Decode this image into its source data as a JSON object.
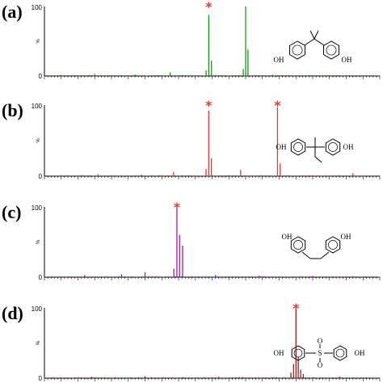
{
  "chart_data": [
    {
      "type": "bar",
      "panel_label": "(a)",
      "color": "#1a9a1a",
      "y_ticks": [
        "0",
        "%",
        "100"
      ],
      "ylim": [
        0,
        100
      ],
      "xlim": [
        0,
        100
      ],
      "marker": "*",
      "marker_x": 49,
      "peaks": [
        {
          "x": 49,
          "y": 88
        },
        {
          "x": 49.8,
          "y": 22
        },
        {
          "x": 48.2,
          "y": 8
        },
        {
          "x": 60,
          "y": 100
        },
        {
          "x": 60.7,
          "y": 38
        },
        {
          "x": 59.3,
          "y": 10
        },
        {
          "x": 37.5,
          "y": 5
        },
        {
          "x": 15,
          "y": 3
        },
        {
          "x": 27,
          "y": 2
        },
        {
          "x": 68,
          "y": 2
        }
      ],
      "molecule_labels": [
        "OH",
        "OH"
      ]
    },
    {
      "type": "bar",
      "panel_label": "(b)",
      "color": "#e53935",
      "y_ticks": [
        "0",
        "%",
        "100"
      ],
      "ylim": [
        0,
        100
      ],
      "xlim": [
        0,
        100
      ],
      "marker": "*",
      "marker_x": 49,
      "marker2_x": 69.5,
      "peaks": [
        {
          "x": 49,
          "y": 92
        },
        {
          "x": 49.8,
          "y": 25
        },
        {
          "x": 48.2,
          "y": 10
        },
        {
          "x": 69.5,
          "y": 97
        },
        {
          "x": 70.3,
          "y": 18
        },
        {
          "x": 58.5,
          "y": 9
        },
        {
          "x": 38.5,
          "y": 6
        },
        {
          "x": 16,
          "y": 3
        },
        {
          "x": 29,
          "y": 2
        },
        {
          "x": 92,
          "y": 4
        }
      ],
      "molecule_labels": [
        "OH",
        "OH"
      ]
    },
    {
      "type": "bar",
      "panel_label": "(c)",
      "color": "#9b1fa1",
      "y_ticks": [
        "0",
        "%",
        "100"
      ],
      "ylim": [
        0,
        100
      ],
      "xlim": [
        0,
        100
      ],
      "marker": "*",
      "marker_x": 39.5,
      "peaks": [
        {
          "x": 39.5,
          "y": 100
        },
        {
          "x": 40.3,
          "y": 60
        },
        {
          "x": 41.2,
          "y": 45
        },
        {
          "x": 38.6,
          "y": 12
        },
        {
          "x": 30,
          "y": 7
        },
        {
          "x": 23,
          "y": 4
        },
        {
          "x": 12,
          "y": 3
        },
        {
          "x": 51,
          "y": 3
        },
        {
          "x": 64,
          "y": 2
        },
        {
          "x": 80,
          "y": 2
        }
      ],
      "molecule_labels": [
        "OH",
        "OH"
      ]
    },
    {
      "type": "bar",
      "panel_label": "(d)",
      "color": "#a31c1c",
      "y_ticks": [
        "0",
        "%",
        "100"
      ],
      "ylim": [
        0,
        100
      ],
      "xlim": [
        0,
        100
      ],
      "marker": "*",
      "marker_x": 75,
      "peaks": [
        {
          "x": 75,
          "y": 100
        },
        {
          "x": 75.7,
          "y": 30
        },
        {
          "x": 74.3,
          "y": 20
        },
        {
          "x": 76.4,
          "y": 12
        },
        {
          "x": 73.5,
          "y": 8
        },
        {
          "x": 77.2,
          "y": 6
        },
        {
          "x": 30,
          "y": 3
        },
        {
          "x": 52,
          "y": 2
        },
        {
          "x": 14,
          "y": 2
        },
        {
          "x": 88,
          "y": 2
        }
      ],
      "molecule_labels": [
        "OH",
        "S",
        "O",
        "O",
        "OH"
      ]
    }
  ]
}
